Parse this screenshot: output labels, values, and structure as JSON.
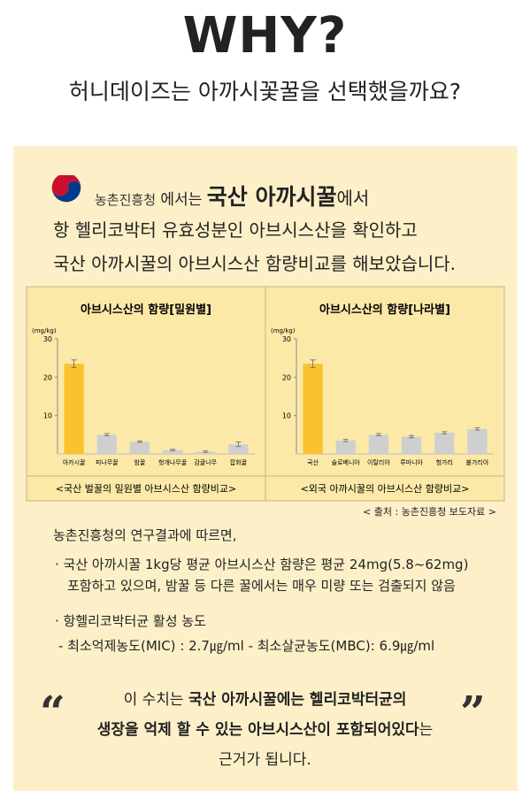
{
  "header": {
    "title": "WHY?",
    "subtitle": "허니데이즈는 아까시꽃꿀을 선택했을까요?"
  },
  "intro": {
    "line1": [
      "농촌진흥청",
      " 에서는 ",
      "국산 아까시꿀",
      "에서"
    ],
    "line2": "항 헬리코박터 유효성분인 아브시스산을 확인하고",
    "line3": "국산 아까시꿀의 아브시스산 함량비교를 해보았습니다."
  },
  "chart_data": [
    {
      "type": "bar",
      "title": "아브시스산의 함량[밀원별]",
      "y_label": "(mg/kg)",
      "caption": "<국산 벌꿀의 밀원별 아브시스산 함량비교>",
      "categories": [
        "아카시꿀",
        "피나무꿀",
        "밤꿀",
        "헛개나무꿀",
        "감귤나무",
        "잡화꿀"
      ],
      "values": [
        23.5,
        5,
        3.2,
        1,
        0.6,
        2.5
      ],
      "errors": [
        1,
        0.3,
        0.2,
        0.2,
        0.2,
        0.6
      ],
      "colors": [
        "#f9c22e",
        "#cfcfcf",
        "#cfcfcf",
        "#cfcfcf",
        "#cfcfcf",
        "#cfcfcf"
      ],
      "ylim": [
        0,
        30
      ],
      "yticks": [
        10,
        20,
        30
      ]
    },
    {
      "type": "bar",
      "title": "아브시스산의 함량[나라별]",
      "y_label": "(mg/kg)",
      "caption": "<외국 아까시꿀의 아브시스산 함량비교>",
      "categories": [
        "국산",
        "슬로베니아",
        "이탈리아",
        "루마니아",
        "헝가리",
        "불가리아"
      ],
      "values": [
        23.5,
        3.5,
        5,
        4.5,
        5.5,
        6.5
      ],
      "errors": [
        1,
        0.3,
        0.3,
        0.3,
        0.3,
        0.3
      ],
      "colors": [
        "#f9c22e",
        "#cfcfcf",
        "#cfcfcf",
        "#cfcfcf",
        "#cfcfcf",
        "#cfcfcf"
      ],
      "ylim": [
        0,
        30
      ],
      "yticks": [
        10,
        20,
        30
      ]
    }
  ],
  "source": "< 출처 : 농촌진흥청 보도자료 >",
  "body": {
    "intro": "농촌진흥청의 연구결과에 따르면,",
    "bullet1": [
      "· 국산 아까시꿀 1kg당 평균 아브시스산 함량은 평균 24mg(5.8~62mg)",
      "포함하고 있으며, 밤꿀 등 다른 꿀에서는 매우 미량 또는 검출되지 않음"
    ],
    "bullet2": [
      "·  항헬리코박터균 활성 농도",
      "- 최소억제농도(MIC) : 2.7㎍/ml   - 최소살균농도(MBC): 6.9㎍/ml"
    ]
  },
  "quote": {
    "line1": [
      "이 수치는 ",
      "국산 아까시꿀에는 헬리코박터균의"
    ],
    "line2": [
      "생장을 억제 할 수 있는 아브시스산이 포함되어있다",
      "는"
    ],
    "line3": "근거가 됩니다."
  }
}
